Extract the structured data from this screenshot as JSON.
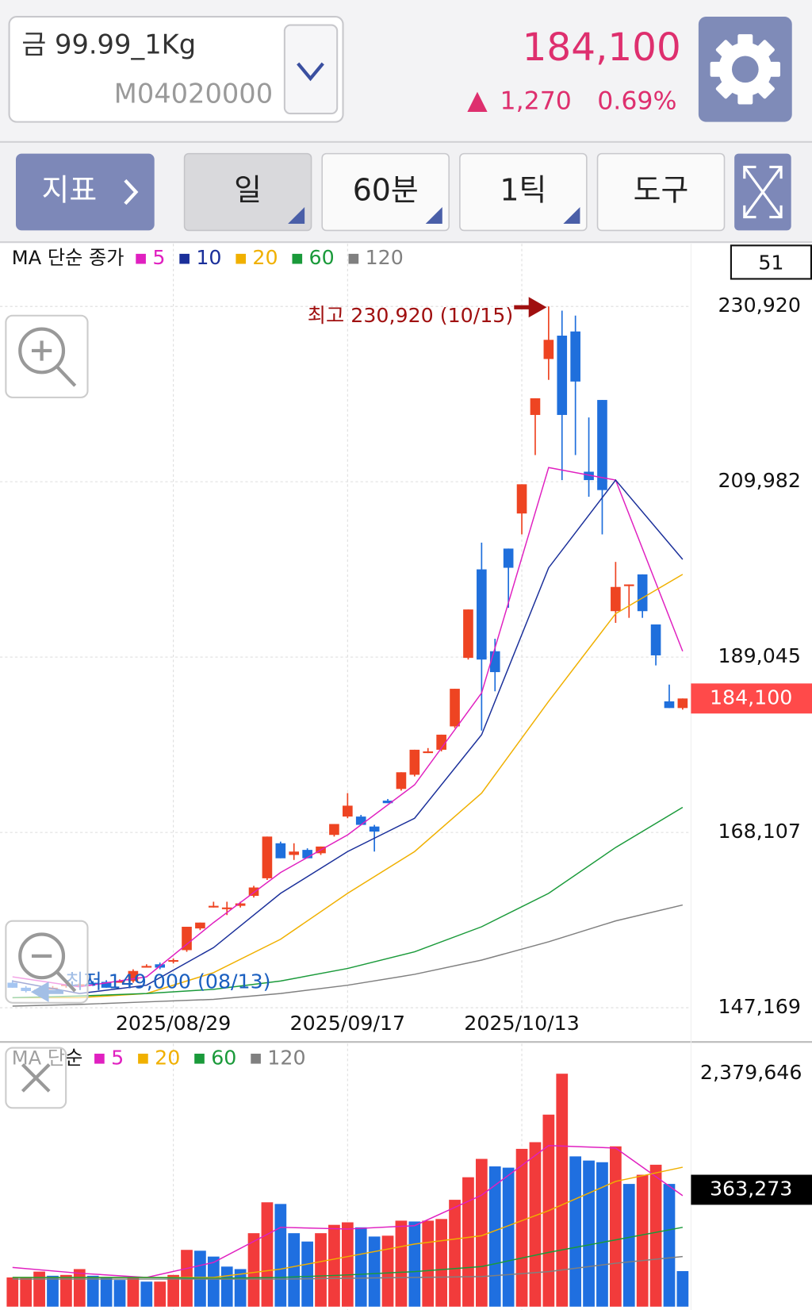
{
  "header": {
    "name": "금 99.99_1Kg",
    "code": "M04020000",
    "price": "184,100",
    "change": "1,270",
    "change_pct": "0.69%"
  },
  "toolbar": {
    "buttons": [
      "지표",
      "일",
      "60분",
      "1틱",
      "도구"
    ]
  },
  "visible_count": 51,
  "chart_data": [
    {
      "type": "candlestick",
      "legend_title": "MA 단순 종가",
      "categories": [
        null,
        null,
        null,
        null,
        null,
        null,
        null,
        null,
        null,
        null,
        null,
        null,
        "2025/08/29",
        null,
        null,
        null,
        null,
        null,
        null,
        null,
        null,
        null,
        null,
        null,
        null,
        "2025/09/17",
        null,
        null,
        null,
        null,
        null,
        null,
        null,
        null,
        null,
        null,
        null,
        null,
        "2025/10/13",
        null,
        null,
        null,
        null,
        null,
        null,
        null,
        null,
        null,
        null,
        null,
        null
      ],
      "open": [
        150160,
        149560,
        149360,
        149560,
        149760,
        149960,
        150160,
        150260,
        150360,
        150360,
        152160,
        152360,
        152660,
        154050,
        156640,
        159340,
        159140,
        159340,
        160530,
        162630,
        166810,
        165420,
        166020,
        165620,
        167810,
        170000,
        170000,
        168810,
        171900,
        173300,
        174990,
        177780,
        177980,
        180770,
        188950,
        199520,
        189740,
        202000,
        206190,
        217960,
        224640,
        227430,
        227930,
        211180,
        219750,
        194530,
        197520,
        198920,
        192940,
        183760,
        182960
      ],
      "high": [
        150460,
        149760,
        149560,
        149760,
        150160,
        150160,
        150360,
        150460,
        150560,
        151760,
        152360,
        152560,
        153060,
        156840,
        157340,
        159830,
        159830,
        159830,
        161730,
        167610,
        167010,
        166810,
        166210,
        166420,
        169110,
        172800,
        170200,
        169010,
        172100,
        175290,
        177980,
        178180,
        179780,
        185260,
        194730,
        202710,
        191240,
        202000,
        209680,
        219950,
        230920,
        230420,
        229820,
        217660,
        219750,
        200410,
        197720,
        198920,
        192940,
        185760,
        184100
      ],
      "low": [
        149560,
        149000,
        149170,
        149360,
        149560,
        149760,
        149760,
        149560,
        150160,
        150160,
        151960,
        151760,
        152460,
        153850,
        156440,
        159140,
        158240,
        159140,
        160330,
        162430,
        165020,
        164820,
        165020,
        165420,
        167610,
        169800,
        169010,
        165820,
        171600,
        173100,
        174790,
        177580,
        177780,
        180570,
        188750,
        180270,
        184960,
        194930,
        203700,
        213170,
        222150,
        210180,
        213170,
        208190,
        203700,
        193130,
        193730,
        193730,
        188050,
        182960,
        182770
      ],
      "close": [
        149560,
        149170,
        149360,
        149560,
        149960,
        149960,
        149960,
        149560,
        150360,
        151560,
        152160,
        151960,
        152860,
        156840,
        157340,
        159340,
        159140,
        159630,
        161530,
        167610,
        165020,
        165820,
        165020,
        166420,
        169110,
        171300,
        169010,
        168210,
        171600,
        175290,
        177980,
        177780,
        179780,
        185260,
        194730,
        188750,
        187250,
        199710,
        209680,
        219950,
        226930,
        217960,
        221950,
        210180,
        208990,
        197420,
        197720,
        194530,
        189250,
        182960,
        184100
      ],
      "up_color": "#ee4422",
      "down_color": "#1f6fdc",
      "ma": [
        {
          "name": "5",
          "color": "#e020c0",
          "x": [
            0,
            5,
            10,
            15,
            20,
            25,
            30,
            35,
            40,
            45,
            50
          ],
          "values": [
            150860,
            149660,
            150860,
            157340,
            163320,
            167810,
            173790,
            184760,
            211680,
            210180,
            189740
          ]
        },
        {
          "name": "10",
          "color": "#1a2f9a",
          "x": [
            0,
            5,
            10,
            15,
            20,
            25,
            30,
            35,
            40,
            45,
            50
          ],
          "values": [
            150360,
            148870,
            149860,
            154350,
            160830,
            165820,
            169800,
            179770,
            199710,
            210180,
            200710
          ]
        },
        {
          "name": "20",
          "color": "#f0b000",
          "x": [
            0,
            5,
            10,
            15,
            20,
            25,
            30,
            35,
            40,
            45,
            50
          ],
          "values": [
            148370,
            148370,
            148870,
            151360,
            155350,
            160830,
            165820,
            172800,
            183760,
            194230,
            198920
          ]
        },
        {
          "name": "60",
          "color": "#1a9a3a",
          "x": [
            0,
            5,
            10,
            15,
            20,
            25,
            30,
            35,
            40,
            45,
            50
          ],
          "values": [
            148370,
            148570,
            148870,
            149370,
            150360,
            151860,
            153850,
            156840,
            160830,
            166310,
            171100
          ]
        },
        {
          "name": "120",
          "color": "#808080",
          "x": [
            0,
            5,
            10,
            15,
            20,
            25,
            30,
            35,
            40,
            45,
            50
          ],
          "values": [
            147370,
            147570,
            147870,
            148170,
            148870,
            149860,
            151160,
            152860,
            155050,
            157540,
            159440
          ]
        }
      ],
      "ylim": [
        146670,
        238398
      ],
      "yticks": [
        {
          "value": 230920,
          "label": "230,920"
        },
        {
          "value": 209982,
          "label": "209,982"
        },
        {
          "value": 189045,
          "label": "189,045"
        },
        {
          "value": 168107,
          "label": "168,107"
        },
        {
          "value": 147169,
          "label": "147,169"
        }
      ],
      "last_price": {
        "value": 184100,
        "label": "184,100"
      },
      "high_annotation": "최고 230,920 (10/15)",
      "low_annotation": "최저 149,000 (08/13)",
      "grid": true
    },
    {
      "type": "bar",
      "legend_title": "MA 단순",
      "values": [
        298500,
        298500,
        358200,
        315600,
        324100,
        383800,
        315600,
        298500,
        272900,
        298500,
        255900,
        255900,
        324100,
        580000,
        571400,
        511700,
        409400,
        383800,
        750600,
        1066100,
        1049100,
        750600,
        665300,
        750600,
        835800,
        861400,
        810300,
        716400,
        725000,
        878500,
        870000,
        878500,
        895500,
        1091700,
        1322000,
        1509600,
        1432900,
        1420000,
        1612000,
        1680200,
        1961700,
        2379646,
        1535200,
        1492600,
        1475500,
        1637600,
        1253800,
        1347600,
        1449900,
        1253800,
        363273
      ],
      "up_color": "#f23b3b",
      "down_color": "#1f6fe0",
      "ma": [
        {
          "name": "5",
          "color": "#e020c0",
          "x": [
            0,
            5,
            10,
            15,
            20,
            25,
            30,
            35,
            40,
            45,
            50
          ],
          "values": [
            400900,
            341200,
            298500,
            452000,
            810300,
            793200,
            827300,
            1139000,
            1646100,
            1620500,
            1134400
          ]
        },
        {
          "name": "20",
          "color": "#f0b000",
          "x": [
            0,
            5,
            10,
            15,
            20,
            25,
            30,
            35,
            40,
            45,
            50
          ],
          "values": [
            298500,
            298500,
            298500,
            298500,
            383800,
            511700,
            639700,
            725000,
            980800,
            1279400,
            1424300
          ]
        },
        {
          "name": "60",
          "color": "#1a9a3a",
          "x": [
            0,
            5,
            10,
            15,
            20,
            25,
            30,
            35,
            40,
            45,
            50
          ],
          "values": [
            298500,
            298500,
            298500,
            290000,
            298500,
            324100,
            358200,
            409400,
            554400,
            682300,
            810300
          ]
        },
        {
          "name": "120",
          "color": "#808080",
          "x": [
            0,
            5,
            10,
            15,
            20,
            25,
            30,
            35,
            40,
            45,
            50
          ],
          "values": [
            281500,
            281500,
            281500,
            281500,
            281500,
            290000,
            298500,
            307000,
            358200,
            443500,
            511700
          ]
        }
      ],
      "ylim": [
        0,
        2379646
      ],
      "yticks": [
        {
          "value": 2379646,
          "label": "2,379,646"
        }
      ],
      "last_value": {
        "value": 363273,
        "label": "363,273"
      }
    }
  ]
}
